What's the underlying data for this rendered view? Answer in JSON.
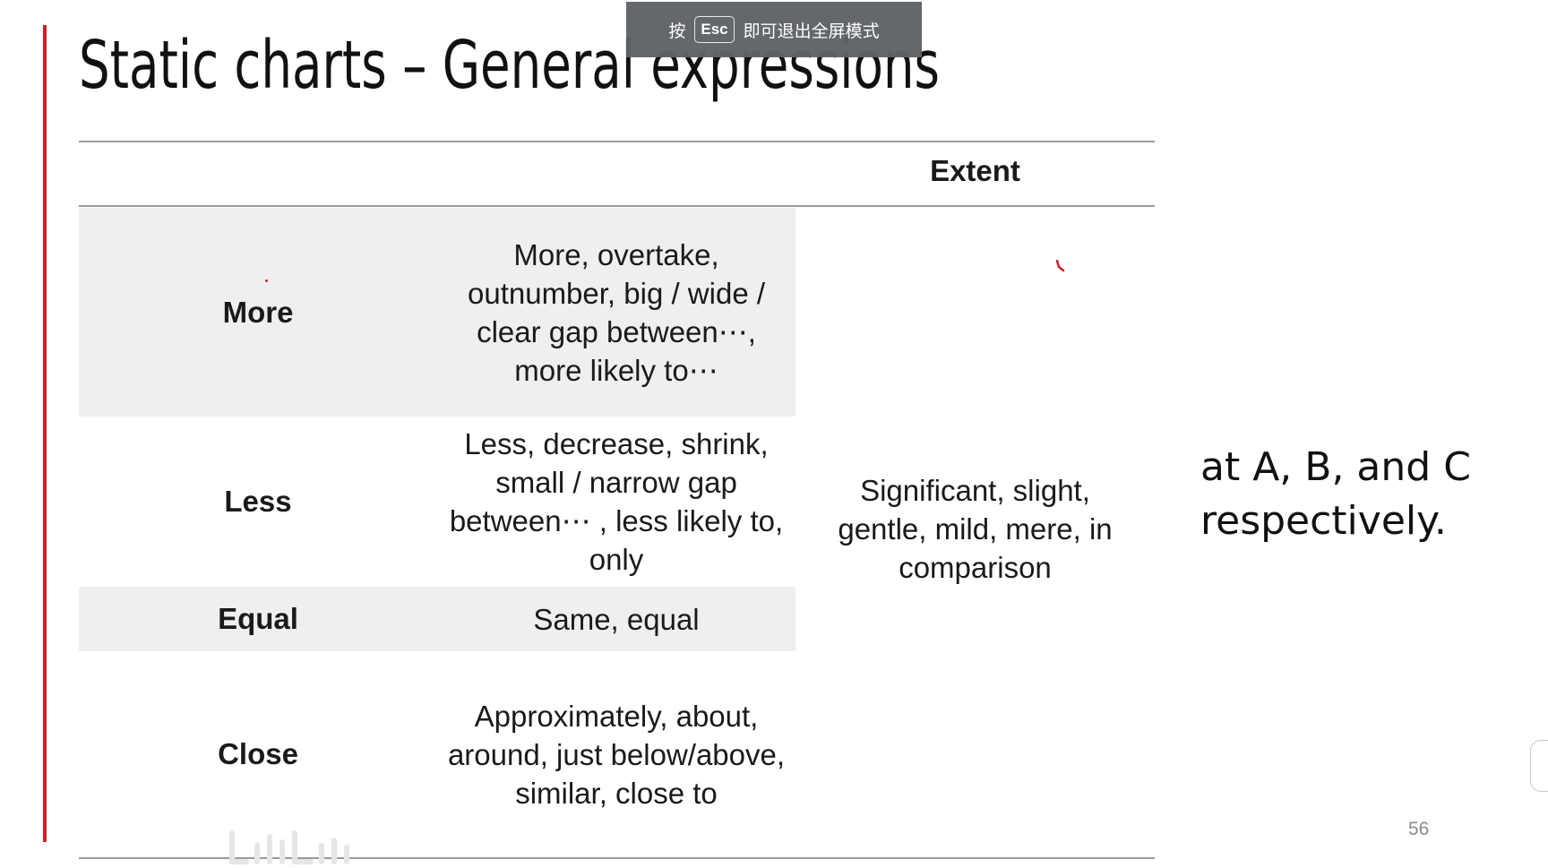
{
  "slide": {
    "title": "Static charts – General expressions",
    "page_number": "56"
  },
  "fullscreen_toast": {
    "prefix": "按",
    "key": "Esc",
    "suffix": "即可退出全屏模式"
  },
  "table": {
    "extent_header": "Extent",
    "rows": [
      {
        "label": "More",
        "expressions": "More, overtake, outnumber, big / wide / clear gap between⋯, more likely to⋯"
      },
      {
        "label": "Less",
        "expressions": "Less, decrease, shrink, small / narrow gap between⋯ , less likely to, only"
      },
      {
        "label": "Equal",
        "expressions": "Same, equal"
      },
      {
        "label": "Close",
        "expressions": "Approximately, about, around, just below/above, similar, close to"
      }
    ],
    "extent_text": "Significant, slight, gentle, mild, mere, in comparison"
  },
  "side_note": "at A, B, and C respectively.",
  "colors": {
    "accent_bar": "#d21f27",
    "row_shade": "#efefef",
    "toast_bg": "#5f6368"
  }
}
